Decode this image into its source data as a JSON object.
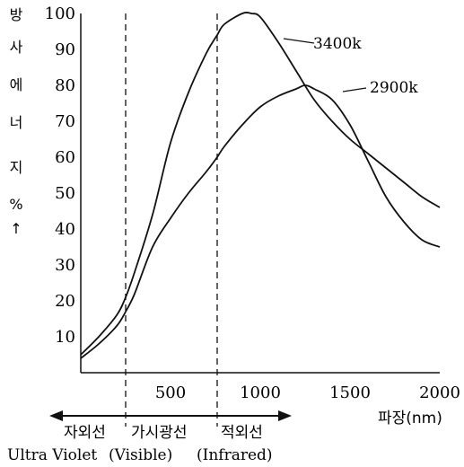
{
  "chart_data": {
    "type": "line",
    "title": "",
    "ylabel_chars": [
      "방",
      "사",
      "에",
      "너",
      "지",
      "%",
      "↑"
    ],
    "xlabel": "파장(nm)",
    "xlim": [
      0,
      2000
    ],
    "ylim": [
      0,
      100
    ],
    "x_ticks": [
      500,
      1000,
      1500,
      2000
    ],
    "y_ticks": [
      10,
      20,
      30,
      40,
      50,
      60,
      70,
      80,
      90,
      100
    ],
    "grid": false,
    "boundaries_nm": [
      250,
      760
    ],
    "series": [
      {
        "name": "3400k",
        "x": [
          0,
          100,
          200,
          250,
          300,
          400,
          500,
          600,
          700,
          760,
          800,
          900,
          950,
          1000,
          1100,
          1200,
          1300,
          1400,
          1500,
          1600,
          1700,
          1800,
          1900,
          2000
        ],
        "y": [
          5,
          10,
          16,
          21,
          28,
          44,
          64,
          78,
          89,
          94,
          97,
          100,
          100,
          99,
          92,
          84,
          76,
          70,
          65,
          61,
          57,
          53,
          49,
          46
        ]
      },
      {
        "name": "2900k",
        "x": [
          0,
          100,
          200,
          250,
          300,
          400,
          500,
          600,
          700,
          760,
          800,
          900,
          1000,
          1100,
          1200,
          1250,
          1300,
          1400,
          1500,
          1600,
          1700,
          1800,
          1900,
          2000
        ],
        "y": [
          4,
          8,
          13,
          17,
          22,
          35,
          43,
          50,
          56,
          60,
          63,
          69,
          74,
          77,
          79,
          80,
          79,
          76,
          69,
          59,
          49,
          42,
          37,
          35
        ]
      }
    ]
  },
  "bands": {
    "uv_kr": "자외선",
    "visible_kr": "가시광선",
    "ir_kr": "적외선",
    "uv_en": "Ultra Violet",
    "visible_en": "(Visible)",
    "ir_en": "(Infrared)"
  }
}
